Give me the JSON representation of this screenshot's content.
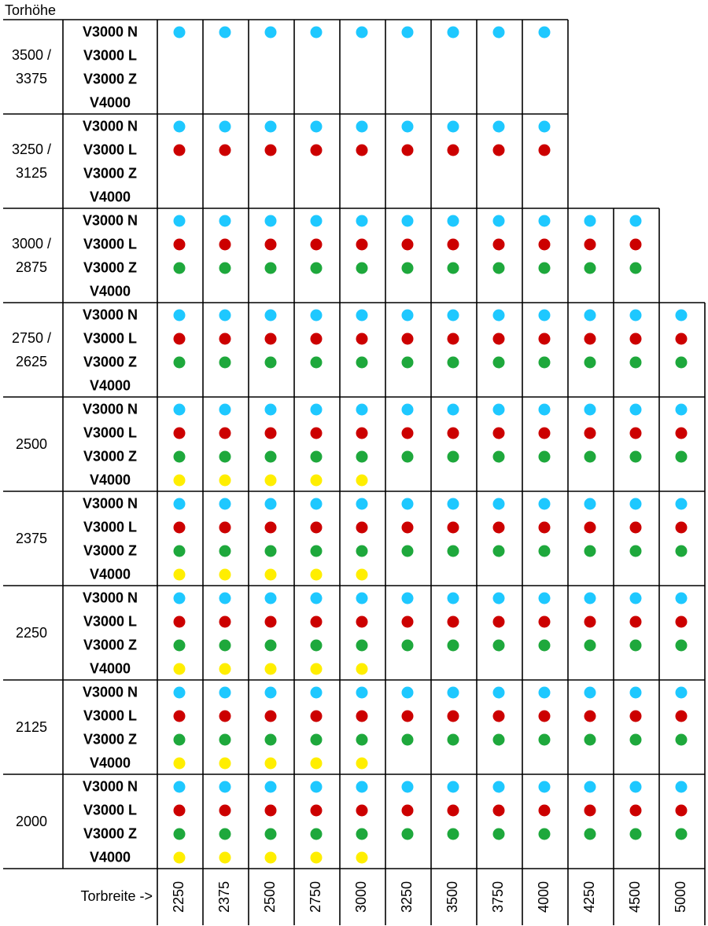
{
  "chart_data": {
    "type": "table",
    "title": "Torhöhe",
    "xlabel": "Torbreite ->",
    "x": [
      "2250",
      "2375",
      "2500",
      "2750",
      "3000",
      "3250",
      "3500",
      "3750",
      "4000",
      "4250",
      "4500",
      "5000"
    ],
    "variants": [
      "V3000 N",
      "V3000 L",
      "V3000 Z",
      "V4000"
    ],
    "variant_colors": {
      "V3000 N": "#1ec8ff",
      "V3000 L": "#cc0000",
      "V3000 Z": "#1ea83c",
      "V4000": "#ffee00"
    },
    "heights": [
      {
        "label": [
          "3500 /",
          "3375"
        ],
        "columns": 9,
        "available": {
          "V3000 N": 9,
          "V3000 L": 0,
          "V3000 Z": 0,
          "V4000": 0
        }
      },
      {
        "label": [
          "3250 /",
          "3125"
        ],
        "columns": 9,
        "available": {
          "V3000 N": 9,
          "V3000 L": 9,
          "V3000 Z": 0,
          "V4000": 0
        }
      },
      {
        "label": [
          "3000 /",
          "2875"
        ],
        "columns": 11,
        "available": {
          "V3000 N": 11,
          "V3000 L": 11,
          "V3000 Z": 11,
          "V4000": 0
        }
      },
      {
        "label": [
          "2750 /",
          "2625"
        ],
        "columns": 12,
        "available": {
          "V3000 N": 12,
          "V3000 L": 12,
          "V3000 Z": 12,
          "V4000": 0
        }
      },
      {
        "label": [
          "2500"
        ],
        "columns": 12,
        "available": {
          "V3000 N": 12,
          "V3000 L": 12,
          "V3000 Z": 12,
          "V4000": 5
        }
      },
      {
        "label": [
          "2375"
        ],
        "columns": 12,
        "available": {
          "V3000 N": 12,
          "V3000 L": 12,
          "V3000 Z": 12,
          "V4000": 5
        }
      },
      {
        "label": [
          "2250"
        ],
        "columns": 12,
        "available": {
          "V3000 N": 12,
          "V3000 L": 12,
          "V3000 Z": 12,
          "V4000": 5
        }
      },
      {
        "label": [
          "2125"
        ],
        "columns": 12,
        "available": {
          "V3000 N": 12,
          "V3000 L": 12,
          "V3000 Z": 12,
          "V4000": 5
        }
      },
      {
        "label": [
          "2000"
        ],
        "columns": 12,
        "available": {
          "V3000 N": 12,
          "V3000 L": 12,
          "V3000 Z": 12,
          "V4000": 5
        }
      }
    ]
  }
}
